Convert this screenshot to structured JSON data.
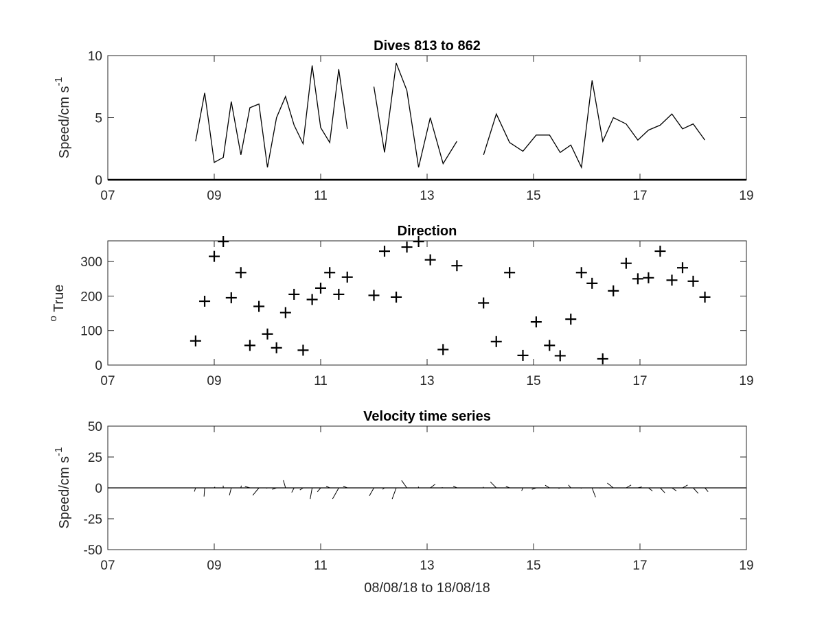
{
  "chart_data": [
    {
      "type": "line",
      "title": "Dives 813 to 862",
      "ylabel_main": "Speed/cm s",
      "ylabel_sup": "-1",
      "xlabel": "",
      "xlim": [
        7,
        19
      ],
      "ylim": [
        0,
        10
      ],
      "xticks": [
        "07",
        "09",
        "11",
        "13",
        "15",
        "17",
        "19"
      ],
      "yticks": [
        "0",
        "5",
        "10"
      ],
      "segments": [
        {
          "x": [
            8.65,
            8.82,
            9.0,
            9.17,
            9.32,
            9.5,
            9.67,
            9.84,
            10.0,
            10.17,
            10.34,
            10.5,
            10.67,
            10.84,
            11.0,
            11.17,
            11.34,
            11.5
          ],
          "y": [
            3.1,
            7.0,
            1.4,
            1.8,
            6.3,
            2.0,
            5.8,
            6.1,
            1.0,
            5.0,
            6.7,
            4.4,
            2.9,
            9.2,
            4.2,
            3.0,
            8.9,
            4.1
          ]
        },
        {
          "x": [
            12.0,
            12.2,
            12.42,
            12.62,
            12.84,
            13.06,
            13.3,
            13.56
          ],
          "y": [
            7.5,
            2.2,
            9.4,
            7.2,
            1.0,
            5.0,
            1.3,
            3.1
          ]
        },
        {
          "x": [
            14.06,
            14.3,
            14.55,
            14.8,
            15.05,
            15.3,
            15.5,
            15.7,
            15.9,
            16.1,
            16.3,
            16.5,
            16.74,
            16.96,
            17.16,
            17.38,
            17.6,
            17.8,
            18.0,
            18.22
          ],
          "y": [
            2.0,
            5.3,
            3.0,
            2.3,
            3.6,
            3.6,
            2.2,
            2.8,
            1.0,
            8.0,
            3.1,
            5.0,
            4.5,
            3.2,
            4.0,
            4.4,
            5.3,
            4.1,
            4.5,
            3.2
          ]
        }
      ]
    },
    {
      "type": "scatter",
      "title": "Direction",
      "ylabel_sup": "o",
      "ylabel_main": " True",
      "xlabel": "",
      "xlim": [
        7,
        19
      ],
      "ylim": [
        0,
        360
      ],
      "xticks": [
        "07",
        "09",
        "11",
        "13",
        "15",
        "17",
        "19"
      ],
      "yticks": [
        "0",
        "100",
        "200",
        "300"
      ],
      "marker": "+",
      "x": [
        8.65,
        8.82,
        9.0,
        9.17,
        9.32,
        9.5,
        9.67,
        9.84,
        10.0,
        10.17,
        10.34,
        10.5,
        10.67,
        10.84,
        11.0,
        11.17,
        11.34,
        11.5,
        12.0,
        12.2,
        12.42,
        12.62,
        12.84,
        13.06,
        13.3,
        13.56,
        14.06,
        14.3,
        14.55,
        14.8,
        15.05,
        15.3,
        15.5,
        15.7,
        15.9,
        16.1,
        16.3,
        16.5,
        16.74,
        16.96,
        17.16,
        17.38,
        17.6,
        17.8,
        18.0,
        18.22
      ],
      "y": [
        70,
        185,
        315,
        358,
        195,
        268,
        57,
        170,
        90,
        50,
        152,
        205,
        43,
        190,
        223,
        268,
        205,
        255,
        202,
        330,
        197,
        342,
        358,
        305,
        45,
        288,
        180,
        68,
        268,
        28,
        125,
        57,
        27,
        133,
        268,
        237,
        18,
        215,
        295,
        250,
        253,
        330,
        246,
        282,
        243,
        197
      ]
    },
    {
      "type": "line",
      "subtype": "vector-stick",
      "title": "Velocity time series",
      "ylabel_main": "Speed/cm s",
      "ylabel_sup": "-1",
      "xlabel": "08/08/18 to 18/08/18",
      "xlim": [
        7,
        19
      ],
      "ylim": [
        -50,
        50
      ],
      "xticks": [
        "07",
        "09",
        "11",
        "13",
        "15",
        "17",
        "19"
      ],
      "yticks": [
        "50",
        "25",
        "0",
        "-25",
        "-50"
      ],
      "zero_line": true,
      "sticks": {
        "x": [
          8.65,
          8.82,
          9.0,
          9.17,
          9.32,
          9.5,
          9.67,
          9.84,
          10.0,
          10.17,
          10.34,
          10.5,
          10.67,
          10.84,
          11.0,
          11.17,
          11.34,
          11.5,
          12.0,
          12.2,
          12.42,
          12.62,
          12.84,
          13.06,
          13.3,
          13.56,
          14.06,
          14.3,
          14.55,
          14.8,
          15.05,
          15.3,
          15.5,
          15.7,
          15.9,
          16.1,
          16.3,
          16.5,
          16.74,
          16.96,
          17.16,
          17.38,
          17.6,
          17.8,
          18.0,
          18.22
        ],
        "u": [
          -1.0,
          -0.5,
          0.6,
          -0.1,
          -1.5,
          0.4,
          -4.0,
          -5.0,
          -1.0,
          -3.5,
          -1.8,
          -1.9,
          -2.6,
          -1.6,
          -2.7,
          -2.9,
          -5.0,
          -3.3,
          -3.7,
          -1.6,
          -3.3,
          -4.3,
          -0.2,
          4.0,
          -1.0,
          -3.0,
          -0.3,
          -4.8,
          -3.0,
          -1.0,
          -3.5,
          -3.5,
          -1.3,
          -1.9,
          -0.5,
          2.8,
          -2.9,
          -4.9,
          4.0,
          3.2,
          3.2,
          3.8,
          3.6,
          4.1,
          4.1,
          2.6
        ],
        "v": [
          -3.0,
          -7.0,
          0.8,
          1.8,
          -6.0,
          1.8,
          1.2,
          -6.0,
          -0.3,
          -1.2,
          6.2,
          -3.7,
          -1.7,
          -9.0,
          -3.2,
          1.4,
          -8.9,
          1.4,
          -6.5,
          -1.2,
          -9.0,
          6.0,
          1.0,
          3.0,
          0.3,
          1.5,
          0.8,
          4.9,
          1.3,
          -2.3,
          -1.2,
          2.1,
          -0.4,
          2.4,
          -0.5,
          -7.5,
          -0.1,
          3.9,
          2.3,
          0.8,
          -2.5,
          -4.0,
          -2.4,
          2.3,
          -4.5,
          -3.1
        ]
      }
    }
  ]
}
